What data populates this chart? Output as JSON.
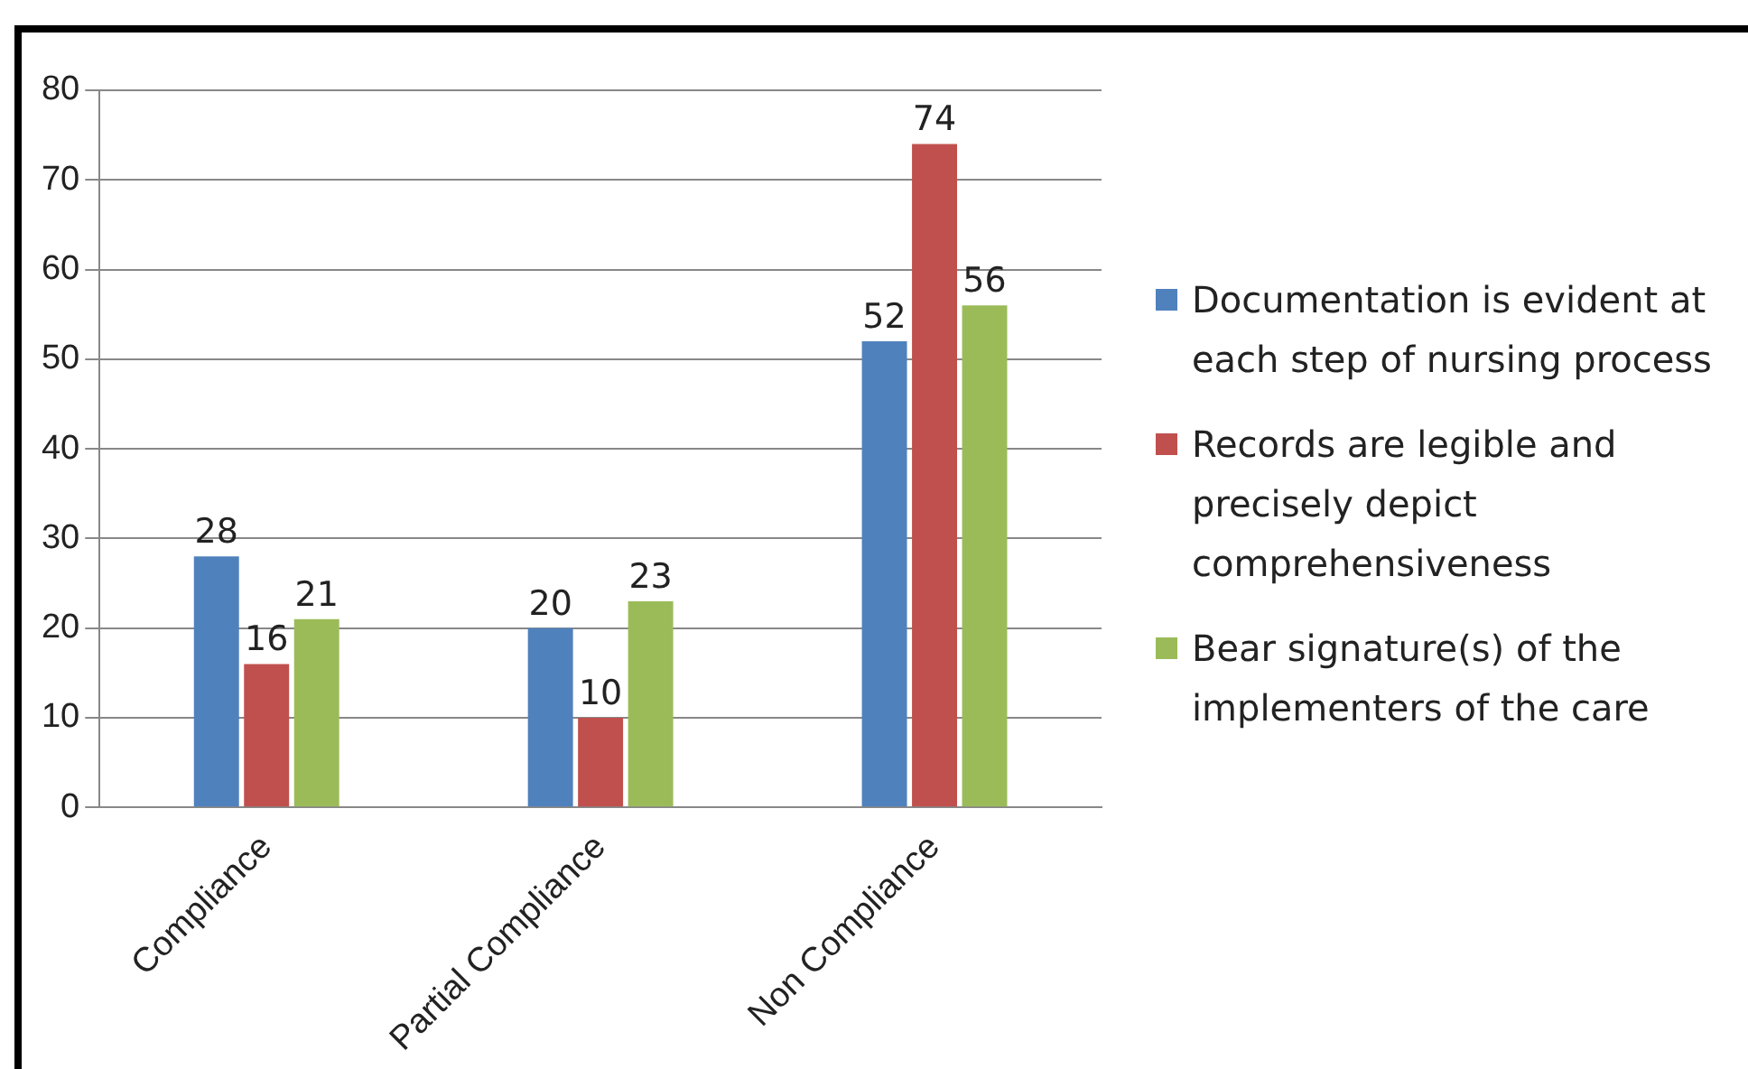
{
  "chart_data": {
    "type": "bar",
    "categories": [
      "Compliance",
      "Partial Compliance",
      "Non Compliance"
    ],
    "series": [
      {
        "name": "Documentation is evident at each step of nursing process",
        "color": "#4f81bd",
        "values": [
          28,
          20,
          52
        ]
      },
      {
        "name": "Records are legible and precisely depict comprehensiveness",
        "color": "#c0504d",
        "values": [
          16,
          10,
          74
        ]
      },
      {
        "name": "Bear signature(s) of the implementers of the care",
        "color": "#9bbb59",
        "values": [
          21,
          23,
          56
        ]
      }
    ],
    "ylim": [
      0,
      80
    ],
    "yticks": [
      0,
      10,
      20,
      30,
      40,
      50,
      60,
      70,
      80
    ],
    "grid": "y",
    "legend": "right",
    "data_labels": true
  }
}
